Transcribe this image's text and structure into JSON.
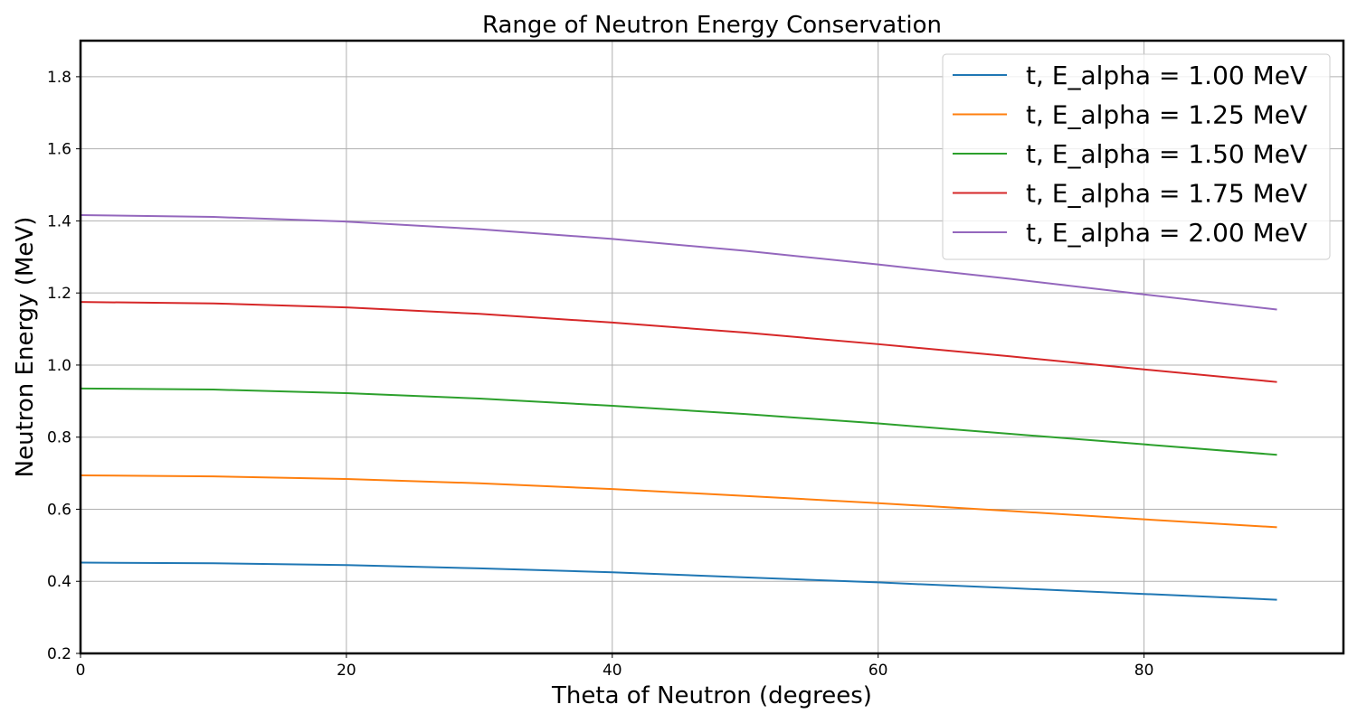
{
  "chart_data": {
    "type": "line",
    "title": "Range of Neutron Energy Conservation",
    "xlabel": "Theta of Neutron (degrees)",
    "ylabel": "Neutron Energy (MeV)",
    "xlim": [
      0,
      95
    ],
    "ylim": [
      0.2,
      1.9
    ],
    "xticks": [
      0,
      20,
      40,
      60,
      80
    ],
    "yticks": [
      0.2,
      0.4,
      0.6,
      0.8,
      1.0,
      1.2,
      1.4,
      1.6,
      1.8
    ],
    "grid": true,
    "legend_position": "top-right",
    "x": [
      0,
      10,
      20,
      30,
      40,
      50,
      60,
      70,
      80,
      90
    ],
    "series": [
      {
        "name": "t, E_alpha = 1.00 MeV",
        "color": "#1f77b4",
        "values": [
          0.452,
          0.45,
          0.445,
          0.436,
          0.425,
          0.411,
          0.397,
          0.381,
          0.365,
          0.349
        ]
      },
      {
        "name": "t, E_alpha = 1.25 MeV",
        "color": "#ff7f0e",
        "values": [
          0.694,
          0.691,
          0.684,
          0.672,
          0.656,
          0.637,
          0.617,
          0.595,
          0.572,
          0.55
        ]
      },
      {
        "name": "t, E_alpha = 1.50 MeV",
        "color": "#2ca02c",
        "values": [
          0.935,
          0.932,
          0.922,
          0.907,
          0.887,
          0.864,
          0.838,
          0.809,
          0.78,
          0.751
        ]
      },
      {
        "name": "t, E_alpha = 1.75 MeV",
        "color": "#d62728",
        "values": [
          1.175,
          1.171,
          1.16,
          1.142,
          1.118,
          1.09,
          1.058,
          1.024,
          0.988,
          0.953
        ]
      },
      {
        "name": "t, E_alpha = 2.00 MeV",
        "color": "#9467bd",
        "values": [
          1.416,
          1.411,
          1.398,
          1.377,
          1.35,
          1.317,
          1.279,
          1.239,
          1.196,
          1.154
        ]
      }
    ]
  }
}
